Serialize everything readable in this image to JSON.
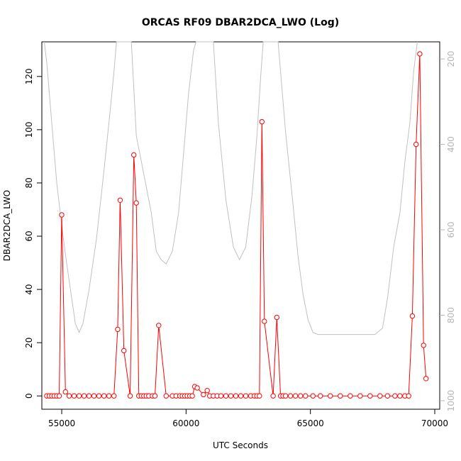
{
  "chart_data": {
    "type": "line",
    "title": "ORCAS RF09 DBAR2DCA_LWO (Log)",
    "xlabel": "UTC Seconds",
    "ylabel": "DBAR2DCA_LWO",
    "xlim": [
      54200,
      70200
    ],
    "ylim": [
      -5,
      133
    ],
    "x_ticks": [
      55000,
      60000,
      65000,
      70000
    ],
    "y_ticks": [
      0,
      20,
      40,
      60,
      80,
      100,
      120
    ],
    "y2_ticks": [
      200,
      400,
      600,
      800,
      1000
    ],
    "y2lim": [
      1020,
      160
    ],
    "grid": false,
    "series": [
      {
        "role": "primary",
        "color": "#ff0000",
        "marker": "open-circle",
        "points": [
          [
            54400,
            0
          ],
          [
            54500,
            0
          ],
          [
            54600,
            0
          ],
          [
            54700,
            0
          ],
          [
            54800,
            0
          ],
          [
            54900,
            0
          ],
          [
            55000,
            68
          ],
          [
            55150,
            1.5
          ],
          [
            55300,
            0
          ],
          [
            55500,
            0
          ],
          [
            55700,
            0
          ],
          [
            55900,
            0
          ],
          [
            56100,
            0
          ],
          [
            56300,
            0
          ],
          [
            56500,
            0
          ],
          [
            56700,
            0
          ],
          [
            56900,
            0
          ],
          [
            57100,
            0
          ],
          [
            57250,
            25
          ],
          [
            57350,
            73.5
          ],
          [
            57500,
            17
          ],
          [
            57750,
            0
          ],
          [
            57900,
            90.5
          ],
          [
            58000,
            72.5
          ],
          [
            58100,
            0
          ],
          [
            58200,
            0
          ],
          [
            58300,
            0
          ],
          [
            58400,
            0
          ],
          [
            58500,
            0
          ],
          [
            58650,
            0
          ],
          [
            58750,
            0
          ],
          [
            58900,
            26.5
          ],
          [
            59200,
            0
          ],
          [
            59450,
            0
          ],
          [
            59600,
            0
          ],
          [
            59750,
            0
          ],
          [
            59850,
            0
          ],
          [
            59950,
            0
          ],
          [
            60050,
            0
          ],
          [
            60150,
            0
          ],
          [
            60250,
            0
          ],
          [
            60350,
            3.5
          ],
          [
            60450,
            3
          ],
          [
            60700,
            0.5
          ],
          [
            60850,
            2
          ],
          [
            60950,
            0
          ],
          [
            61100,
            0
          ],
          [
            61250,
            0
          ],
          [
            61400,
            0
          ],
          [
            61600,
            0
          ],
          [
            61800,
            0
          ],
          [
            62000,
            0
          ],
          [
            62200,
            0
          ],
          [
            62400,
            0
          ],
          [
            62600,
            0
          ],
          [
            62750,
            0
          ],
          [
            62850,
            0
          ],
          [
            62950,
            0
          ],
          [
            63050,
            103
          ],
          [
            63150,
            28
          ],
          [
            63500,
            0
          ],
          [
            63650,
            29.5
          ],
          [
            63800,
            0
          ],
          [
            63900,
            0
          ],
          [
            64000,
            0
          ],
          [
            64200,
            0
          ],
          [
            64400,
            0
          ],
          [
            64600,
            0
          ],
          [
            64800,
            0
          ],
          [
            65100,
            0
          ],
          [
            65400,
            0
          ],
          [
            65800,
            0
          ],
          [
            66200,
            0
          ],
          [
            66600,
            0
          ],
          [
            67000,
            0
          ],
          [
            67400,
            0
          ],
          [
            67800,
            0
          ],
          [
            68100,
            0
          ],
          [
            68400,
            0
          ],
          [
            68600,
            0
          ],
          [
            68800,
            0
          ],
          [
            68950,
            0
          ],
          [
            69100,
            30
          ],
          [
            69250,
            94.5
          ],
          [
            69400,
            128.5
          ],
          [
            69550,
            19
          ],
          [
            69650,
            6.5
          ]
        ]
      },
      {
        "role": "secondary",
        "color": "#c0c0c0",
        "axis": "right",
        "points": [
          [
            54300,
            150
          ],
          [
            54400,
            210
          ],
          [
            54600,
            350
          ],
          [
            54800,
            490
          ],
          [
            55000,
            590
          ],
          [
            55200,
            680
          ],
          [
            55400,
            760
          ],
          [
            55550,
            820
          ],
          [
            55700,
            840
          ],
          [
            55850,
            820
          ],
          [
            56100,
            740
          ],
          [
            56400,
            620
          ],
          [
            56700,
            460
          ],
          [
            56950,
            320
          ],
          [
            57100,
            230
          ],
          [
            57200,
            150
          ],
          [
            57800,
            150
          ],
          [
            58000,
            380
          ],
          [
            58300,
            470
          ],
          [
            58600,
            560
          ],
          [
            58800,
            650
          ],
          [
            59000,
            670
          ],
          [
            59200,
            680
          ],
          [
            59450,
            650
          ],
          [
            59700,
            560
          ],
          [
            59900,
            420
          ],
          [
            60100,
            280
          ],
          [
            60300,
            180
          ],
          [
            60400,
            150
          ],
          [
            61100,
            150
          ],
          [
            61300,
            350
          ],
          [
            61600,
            530
          ],
          [
            61900,
            640
          ],
          [
            62150,
            670
          ],
          [
            62400,
            640
          ],
          [
            62650,
            520
          ],
          [
            62850,
            380
          ],
          [
            63000,
            240
          ],
          [
            63100,
            150
          ],
          [
            63700,
            150
          ],
          [
            64000,
            370
          ],
          [
            64300,
            540
          ],
          [
            64500,
            660
          ],
          [
            64700,
            750
          ],
          [
            64900,
            810
          ],
          [
            65100,
            840
          ],
          [
            65300,
            845
          ],
          [
            66000,
            845
          ],
          [
            66800,
            845
          ],
          [
            67600,
            845
          ],
          [
            67900,
            830
          ],
          [
            68100,
            760
          ],
          [
            68350,
            640
          ],
          [
            68600,
            560
          ],
          [
            68800,
            440
          ],
          [
            69000,
            350
          ],
          [
            69150,
            230
          ],
          [
            69300,
            150
          ]
        ]
      }
    ]
  }
}
